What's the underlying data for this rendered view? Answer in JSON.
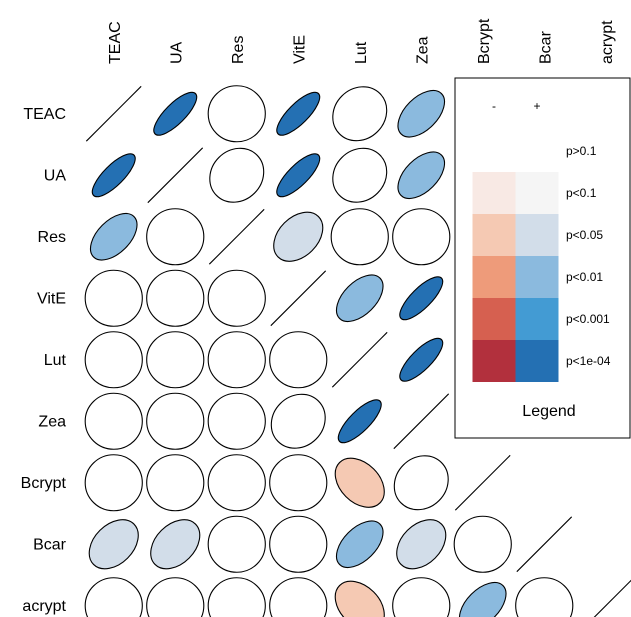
{
  "chart_data": {
    "type": "heatmap",
    "title": "",
    "variables": [
      "TEAC",
      "UA",
      "Res",
      "VitE",
      "Lut",
      "Zea",
      "Bcrypt",
      "Bcar",
      "acrypt"
    ],
    "levels": [
      "none",
      "p>0.1",
      "p<0.1",
      "p<0.05",
      "p<0.01",
      "p<0.001",
      "p<1e-04"
    ],
    "cells": [
      {
        "row": "UA",
        "col": "TEAC",
        "sign": "+",
        "level": "p<1e-04"
      },
      {
        "row": "Res",
        "col": "TEAC",
        "sign": "+",
        "level": "p<0.01"
      },
      {
        "row": "Res",
        "col": "UA",
        "sign": "+",
        "level": "none"
      },
      {
        "row": "VitE",
        "col": "TEAC",
        "sign": "+",
        "level": "none"
      },
      {
        "row": "VitE",
        "col": "UA",
        "sign": "+",
        "level": "none"
      },
      {
        "row": "VitE",
        "col": "Res",
        "sign": "+",
        "level": "none"
      },
      {
        "row": "Lut",
        "col": "TEAC",
        "sign": "+",
        "level": "none"
      },
      {
        "row": "Lut",
        "col": "UA",
        "sign": "+",
        "level": "none"
      },
      {
        "row": "Lut",
        "col": "Res",
        "sign": "+",
        "level": "none"
      },
      {
        "row": "Lut",
        "col": "VitE",
        "sign": "+",
        "level": "none"
      },
      {
        "row": "Zea",
        "col": "TEAC",
        "sign": "+",
        "level": "none"
      },
      {
        "row": "Zea",
        "col": "UA",
        "sign": "+",
        "level": "none"
      },
      {
        "row": "Zea",
        "col": "Res",
        "sign": "+",
        "level": "none"
      },
      {
        "row": "Zea",
        "col": "VitE",
        "sign": "+",
        "level": "p>0.1"
      },
      {
        "row": "Zea",
        "col": "Lut",
        "sign": "+",
        "level": "p<1e-04"
      },
      {
        "row": "Bcrypt",
        "col": "TEAC",
        "sign": "+",
        "level": "none"
      },
      {
        "row": "Bcrypt",
        "col": "UA",
        "sign": "+",
        "level": "none"
      },
      {
        "row": "Bcrypt",
        "col": "Res",
        "sign": "+",
        "level": "none"
      },
      {
        "row": "Bcrypt",
        "col": "VitE",
        "sign": "+",
        "level": "none"
      },
      {
        "row": "Bcrypt",
        "col": "Lut",
        "sign": "-",
        "level": "p<0.05"
      },
      {
        "row": "Bcrypt",
        "col": "Zea",
        "sign": "+",
        "level": "p>0.1"
      },
      {
        "row": "Bcar",
        "col": "TEAC",
        "sign": "+",
        "level": "p<0.05"
      },
      {
        "row": "Bcar",
        "col": "UA",
        "sign": "+",
        "level": "p<0.05"
      },
      {
        "row": "Bcar",
        "col": "Res",
        "sign": "+",
        "level": "none"
      },
      {
        "row": "Bcar",
        "col": "VitE",
        "sign": "+",
        "level": "none"
      },
      {
        "row": "Bcar",
        "col": "Lut",
        "sign": "+",
        "level": "p<0.01"
      },
      {
        "row": "Bcar",
        "col": "Zea",
        "sign": "+",
        "level": "p<0.05"
      },
      {
        "row": "Bcar",
        "col": "Bcrypt",
        "sign": "+",
        "level": "none"
      },
      {
        "row": "acrypt",
        "col": "TEAC",
        "sign": "+",
        "level": "none"
      },
      {
        "row": "acrypt",
        "col": "UA",
        "sign": "+",
        "level": "none"
      },
      {
        "row": "acrypt",
        "col": "Res",
        "sign": "+",
        "level": "none"
      },
      {
        "row": "acrypt",
        "col": "VitE",
        "sign": "+",
        "level": "none"
      },
      {
        "row": "acrypt",
        "col": "Lut",
        "sign": "-",
        "level": "p<0.05"
      },
      {
        "row": "acrypt",
        "col": "Zea",
        "sign": "+",
        "level": "none"
      },
      {
        "row": "acrypt",
        "col": "Bcrypt",
        "sign": "+",
        "level": "p<0.01"
      },
      {
        "row": "acrypt",
        "col": "Bcar",
        "sign": "+",
        "level": "none"
      },
      {
        "row": "TEAC",
        "col": "UA",
        "sign": "+",
        "level": "p<1e-04"
      },
      {
        "row": "TEAC",
        "col": "Res",
        "sign": "+",
        "level": "none"
      },
      {
        "row": "TEAC",
        "col": "VitE",
        "sign": "+",
        "level": "p<1e-04"
      },
      {
        "row": "TEAC",
        "col": "Lut",
        "sign": "+",
        "level": "p>0.1"
      },
      {
        "row": "TEAC",
        "col": "Zea",
        "sign": "+",
        "level": "p<0.01"
      },
      {
        "row": "UA",
        "col": "Res",
        "sign": "+",
        "level": "p>0.1"
      },
      {
        "row": "UA",
        "col": "VitE",
        "sign": "+",
        "level": "p<1e-04"
      },
      {
        "row": "UA",
        "col": "Lut",
        "sign": "+",
        "level": "p>0.1"
      },
      {
        "row": "UA",
        "col": "Zea",
        "sign": "+",
        "level": "p<0.01"
      },
      {
        "row": "Res",
        "col": "VitE",
        "sign": "+",
        "level": "p<0.05"
      },
      {
        "row": "Res",
        "col": "Lut",
        "sign": "+",
        "level": "none"
      },
      {
        "row": "Res",
        "col": "Zea",
        "sign": "+",
        "level": "none"
      },
      {
        "row": "VitE",
        "col": "Lut",
        "sign": "+",
        "level": "p<0.01"
      },
      {
        "row": "VitE",
        "col": "Zea",
        "sign": "+",
        "level": "p<1e-04"
      },
      {
        "row": "Lut",
        "col": "Zea",
        "sign": "+",
        "level": "p<1e-04"
      }
    ],
    "legend": {
      "title": "Legend",
      "signs": [
        "-",
        "+"
      ],
      "levels": [
        "p>0.1",
        "p<0.1",
        "p<0.05",
        "p<0.01",
        "p<0.001",
        "p<1e-04"
      ],
      "colors": {
        "-": [
          "#ffffff",
          "#f8e9e4",
          "#f5c9b3",
          "#ee9b7a",
          "#d66050",
          "#b2303d"
        ],
        "+": [
          "#ffffff",
          "#f5f5f5",
          "#d2dde9",
          "#8bbade",
          "#439bd3",
          "#2470b3"
        ]
      }
    },
    "empty_color": "#ffffff",
    "outline_color": "#000000"
  }
}
